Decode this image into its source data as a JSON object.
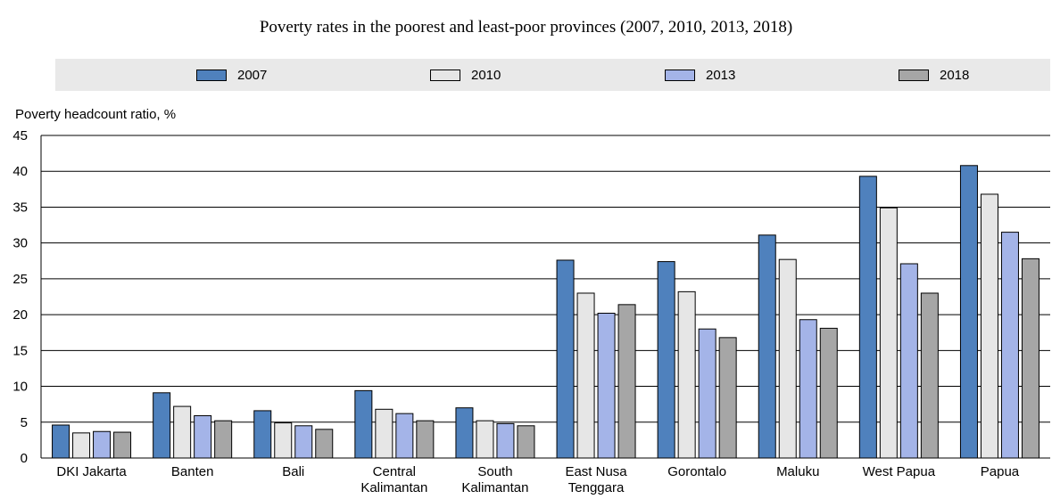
{
  "chart_data": {
    "type": "bar",
    "title": "Poverty rates in the poorest and least-poor provinces (2007, 2010, 2013, 2018)",
    "ylabel": "Poverty headcount ratio, %",
    "xlabel": "",
    "ylim": [
      0,
      45
    ],
    "yticks": [
      0,
      5,
      10,
      15,
      20,
      25,
      30,
      35,
      40,
      45
    ],
    "grid": true,
    "legend_position": "top",
    "categories": [
      "DKI Jakarta",
      "Banten",
      "Bali",
      "Central Kalimantan",
      "South Kalimantan",
      "East Nusa Tenggara",
      "Gorontalo",
      "Maluku",
      "West Papua",
      "Papua"
    ],
    "category_lines": [
      [
        "DKI Jakarta"
      ],
      [
        "Banten"
      ],
      [
        "Bali"
      ],
      [
        "Central",
        "Kalimantan"
      ],
      [
        "South",
        "Kalimantan"
      ],
      [
        "East Nusa",
        "Tenggara"
      ],
      [
        "Gorontalo"
      ],
      [
        "Maluku"
      ],
      [
        "West Papua"
      ],
      [
        "Papua"
      ]
    ],
    "series": [
      {
        "name": "2007",
        "color": "#4f81bd",
        "values": [
          4.6,
          9.1,
          6.6,
          9.4,
          7.0,
          27.6,
          27.4,
          31.1,
          39.3,
          40.8
        ]
      },
      {
        "name": "2010",
        "color": "#e6e6e6",
        "values": [
          3.5,
          7.2,
          4.9,
          6.8,
          5.2,
          23.0,
          23.2,
          27.7,
          34.9,
          36.8
        ]
      },
      {
        "name": "2013",
        "color": "#a4b4e8",
        "values": [
          3.7,
          5.9,
          4.5,
          6.2,
          4.8,
          20.2,
          18.0,
          19.3,
          27.1,
          31.5
        ]
      },
      {
        "name": "2018",
        "color": "#a6a6a6",
        "values": [
          3.6,
          5.2,
          4.0,
          5.2,
          4.5,
          21.4,
          16.8,
          18.1,
          23.0,
          27.8
        ]
      }
    ]
  }
}
